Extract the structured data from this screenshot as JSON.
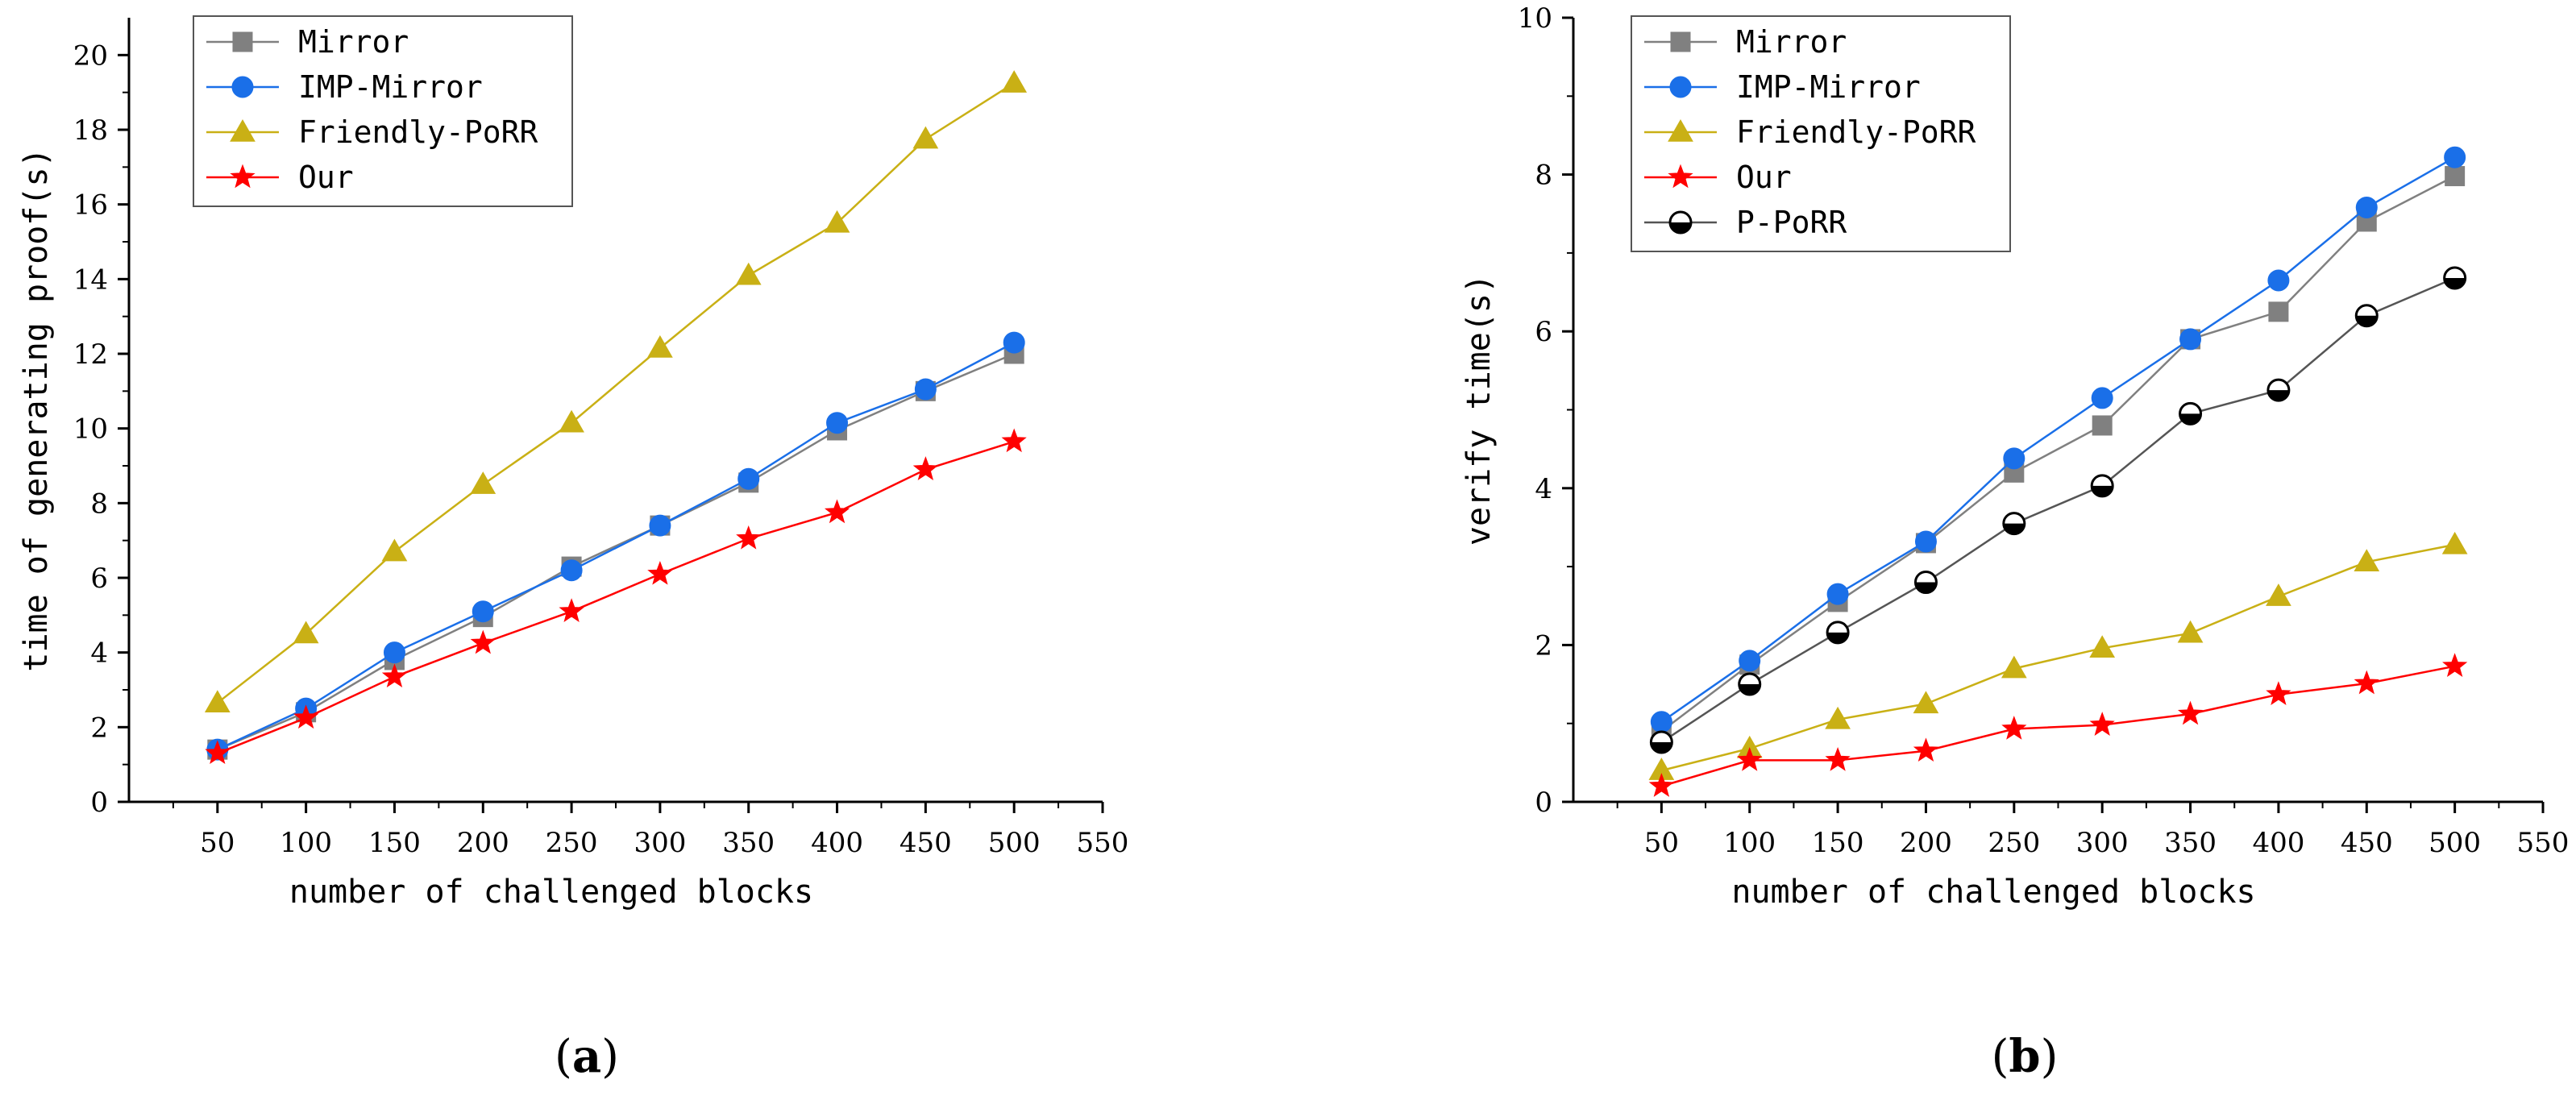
{
  "chart_data": [
    {
      "panel_label": "a",
      "type": "line",
      "title": "",
      "xlabel": "number of challenged blocks",
      "ylabel": "time of generating proof(s)",
      "xlim": [
        0,
        550
      ],
      "ylim": [
        0,
        21
      ],
      "xticks": [
        50,
        100,
        150,
        200,
        250,
        300,
        350,
        400,
        450,
        500,
        550
      ],
      "yticks": [
        0,
        2,
        4,
        6,
        8,
        10,
        12,
        14,
        16,
        18,
        20
      ],
      "x": [
        50,
        100,
        150,
        200,
        250,
        300,
        350,
        400,
        450,
        500
      ],
      "legend_position": "top-left",
      "grid": false,
      "series": [
        {
          "name": "Mirror",
          "marker": "square",
          "color": "#808080",
          "values": [
            1.4,
            2.4,
            3.8,
            4.95,
            6.3,
            7.4,
            8.55,
            9.95,
            11.0,
            12.0
          ]
        },
        {
          "name": "IMP-Mirror",
          "marker": "circle",
          "color": "#1a6fe8",
          "values": [
            1.4,
            2.5,
            4.0,
            5.1,
            6.2,
            7.4,
            8.65,
            10.15,
            11.05,
            12.3
          ]
        },
        {
          "name": "Friendly-PoRR",
          "marker": "triangle",
          "color": "#c9b015",
          "values": [
            2.65,
            4.5,
            6.7,
            8.5,
            10.15,
            12.15,
            14.1,
            15.5,
            17.75,
            19.25
          ]
        },
        {
          "name": "Our",
          "marker": "star",
          "color": "#ff0000",
          "values": [
            1.3,
            2.25,
            3.35,
            4.25,
            5.1,
            6.1,
            7.05,
            7.75,
            8.9,
            9.65
          ]
        }
      ]
    },
    {
      "panel_label": "b",
      "type": "line",
      "title": "",
      "xlabel": "number of challenged blocks",
      "ylabel": "verify time(s)",
      "xlim": [
        0,
        550
      ],
      "ylim": [
        0,
        10
      ],
      "xticks": [
        50,
        100,
        150,
        200,
        250,
        300,
        350,
        400,
        450,
        500,
        550
      ],
      "yticks": [
        0,
        2,
        4,
        6,
        8,
        10
      ],
      "x": [
        50,
        100,
        150,
        200,
        250,
        300,
        350,
        400,
        450,
        500
      ],
      "legend_position": "top-left",
      "grid": false,
      "series": [
        {
          "name": "Mirror",
          "marker": "square",
          "color": "#808080",
          "values": [
            0.9,
            1.75,
            2.55,
            3.3,
            4.2,
            4.8,
            5.9,
            6.25,
            7.4,
            7.98
          ]
        },
        {
          "name": "IMP-Mirror",
          "marker": "circle",
          "color": "#1a6fe8",
          "values": [
            1.02,
            1.8,
            2.65,
            3.32,
            4.38,
            5.15,
            5.9,
            6.65,
            7.58,
            8.22
          ]
        },
        {
          "name": "Friendly-PoRR",
          "marker": "triangle",
          "color": "#c9b015",
          "values": [
            0.4,
            0.68,
            1.05,
            1.25,
            1.7,
            1.96,
            2.15,
            2.62,
            3.06,
            3.28
          ]
        },
        {
          "name": "Our",
          "marker": "star",
          "color": "#ff0000",
          "values": [
            0.2,
            0.53,
            0.53,
            0.65,
            0.93,
            0.98,
            1.12,
            1.37,
            1.51,
            1.73
          ]
        },
        {
          "name": "P-PoRR",
          "marker": "half-circle",
          "color": "#000000",
          "values": [
            0.76,
            1.5,
            2.16,
            2.8,
            3.55,
            4.03,
            4.95,
            5.25,
            6.2,
            6.68
          ]
        }
      ]
    }
  ]
}
